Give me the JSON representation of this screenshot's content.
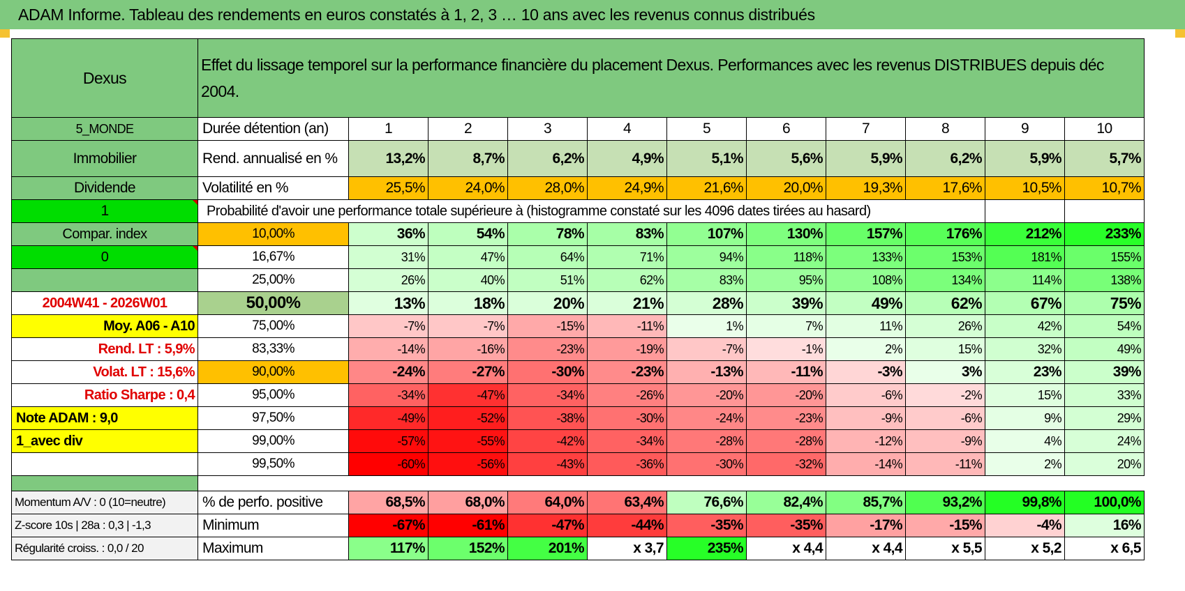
{
  "banner_title": "ADAM Informe. Tableau des rendements en euros constatés à 1, 2, 3 … 10 ans avec les revenus connus distribués",
  "header": {
    "fund": "Dexus",
    "description": "Effet du lissage temporel sur la performance financière du placement Dexus. Performances avec les revenus DISTRIBUES depuis déc 2004."
  },
  "years_label": "Durée détention (an)",
  "years": [
    "1",
    "2",
    "3",
    "4",
    "5",
    "6",
    "7",
    "8",
    "9",
    "10"
  ],
  "left_labels": {
    "zone": "5_MONDE",
    "category": "Immobilier",
    "type": "Dividende",
    "flag1": "1",
    "compar": "Compar. index",
    "flag0": "0",
    "blank": "",
    "period": "2004W41 - 2026W01",
    "moy": "Moy. A06 - A10",
    "rend_lt": "Rend. LT :    5,9%",
    "volat_lt": "Volat. LT :    15,6%",
    "sharpe": "Ratio Sharpe :     0,4",
    "note": "Note ADAM : 9,0",
    "div": "1_avec div",
    "empty": ""
  },
  "rend": {
    "label": "Rend. annualisé en %",
    "values": [
      "13,2%",
      "8,7%",
      "6,2%",
      "4,9%",
      "5,1%",
      "5,6%",
      "5,9%",
      "6,2%",
      "5,9%",
      "5,7%"
    ]
  },
  "vol": {
    "label": "Volatilité en %",
    "values": [
      "25,5%",
      "24,0%",
      "28,0%",
      "24,9%",
      "21,6%",
      "20,0%",
      "19,3%",
      "17,6%",
      "10,5%",
      "10,7%"
    ]
  },
  "prob_title": "Probabilité d'avoir une performance totale supérieure à (histogramme constaté sur les 4096 dates tirées au hasard)",
  "quantiles": [
    {
      "pct": "10,00%",
      "values": [
        "36%",
        "54%",
        "78%",
        "83%",
        "107%",
        "130%",
        "157%",
        "176%",
        "212%",
        "233%"
      ]
    },
    {
      "pct": "16,67%",
      "values": [
        "31%",
        "47%",
        "64%",
        "71%",
        "94%",
        "118%",
        "133%",
        "153%",
        "181%",
        "155%"
      ]
    },
    {
      "pct": "25,00%",
      "values": [
        "26%",
        "40%",
        "51%",
        "62%",
        "83%",
        "95%",
        "108%",
        "134%",
        "114%",
        "138%"
      ]
    },
    {
      "pct": "50,00%",
      "values": [
        "13%",
        "18%",
        "20%",
        "21%",
        "28%",
        "39%",
        "49%",
        "62%",
        "67%",
        "75%"
      ]
    },
    {
      "pct": "75,00%",
      "values": [
        "-7%",
        "-7%",
        "-15%",
        "-11%",
        "1%",
        "7%",
        "11%",
        "26%",
        "42%",
        "54%"
      ]
    },
    {
      "pct": "83,33%",
      "values": [
        "-14%",
        "-16%",
        "-23%",
        "-19%",
        "-7%",
        "-1%",
        "2%",
        "15%",
        "32%",
        "49%"
      ]
    },
    {
      "pct": "90,00%",
      "values": [
        "-24%",
        "-27%",
        "-30%",
        "-23%",
        "-13%",
        "-11%",
        "-3%",
        "3%",
        "23%",
        "39%"
      ]
    },
    {
      "pct": "95,00%",
      "values": [
        "-34%",
        "-47%",
        "-34%",
        "-26%",
        "-20%",
        "-20%",
        "-6%",
        "-2%",
        "15%",
        "33%"
      ]
    },
    {
      "pct": "97,50%",
      "values": [
        "-49%",
        "-52%",
        "-38%",
        "-30%",
        "-24%",
        "-23%",
        "-9%",
        "-6%",
        "9%",
        "29%"
      ]
    },
    {
      "pct": "99,00%",
      "values": [
        "-57%",
        "-55%",
        "-42%",
        "-34%",
        "-28%",
        "-28%",
        "-12%",
        "-9%",
        "4%",
        "24%"
      ]
    },
    {
      "pct": "99,50%",
      "values": [
        "-60%",
        "-56%",
        "-43%",
        "-36%",
        "-30%",
        "-32%",
        "-14%",
        "-11%",
        "2%",
        "20%"
      ]
    }
  ],
  "bottom": [
    {
      "left": "Momentum A/V : 0 (10=neutre)",
      "label": "% de perfo. positive",
      "values": [
        "68,5%",
        "68,0%",
        "64,0%",
        "63,4%",
        "76,6%",
        "82,4%",
        "85,7%",
        "93,2%",
        "99,8%",
        "100,0%"
      ]
    },
    {
      "left": "Z-score 10s | 28a : 0,3 | -1,3",
      "label": "Minimum",
      "values": [
        "-67%",
        "-61%",
        "-47%",
        "-44%",
        "-35%",
        "-35%",
        "-17%",
        "-15%",
        "-4%",
        "16%"
      ]
    },
    {
      "left": "Régularité croiss. : 0,0 / 20",
      "label": "Maximum",
      "values": [
        "117%",
        "152%",
        "201%",
        "x 3,7",
        "235%",
        "x 4,4",
        "x 4,4",
        "x 5,5",
        "x 5,2",
        "x 6,5"
      ]
    }
  ],
  "colors": {
    "header_green": "#7fc97f",
    "accent_red": "#e00000",
    "highlight_yellow": "#ffff00",
    "highlight_orange": "#ffc000"
  }
}
